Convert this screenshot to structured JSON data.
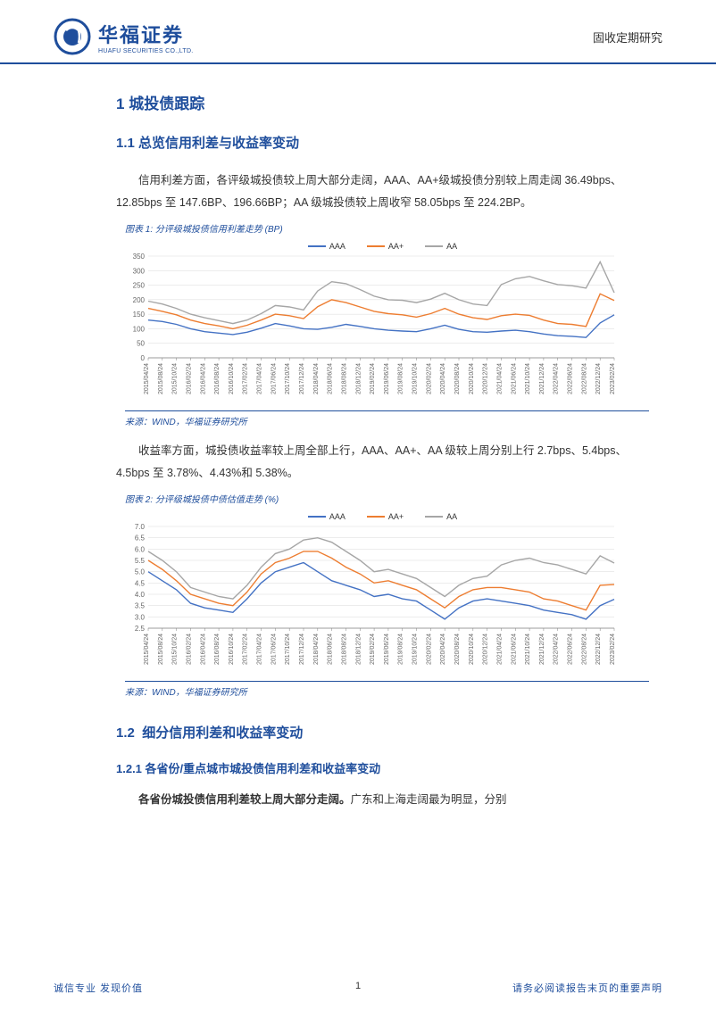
{
  "header": {
    "company_cn": "华福证券",
    "company_en": "HUAFU SECURITIES CO.,LTD.",
    "doc_type": "固收定期研究",
    "logo_color": "#1f4e9c"
  },
  "section1": {
    "num": "1",
    "title": "城投债跟踪"
  },
  "section1_1": {
    "num": "1.1",
    "title": "总览信用利差与收益率变动"
  },
  "para1": "信用利差方面，各评级城投债较上周大部分走阔，AAA、AA+级城投债分别较上周走阔 36.49bps、12.85bps 至 147.6BP、196.66BP；AA 级城投债较上周收窄 58.05bps 至 224.2BP。",
  "chart1": {
    "caption": "图表 1: 分评级城投债信用利差走势 (BP)",
    "source": "来源：WIND，华福证券研究所",
    "type": "line",
    "legend": [
      {
        "label": "AAA",
        "color": "#4472c4"
      },
      {
        "label": "AA+",
        "color": "#ed7d31"
      },
      {
        "label": "AA",
        "color": "#a6a6a6"
      }
    ],
    "ylim": [
      0,
      350
    ],
    "ytick_step": 50,
    "xlabels": [
      "2015/04/24",
      "2015/08/24",
      "2015/10/24",
      "2016/02/24",
      "2016/04/24",
      "2016/08/24",
      "2016/10/24",
      "2017/02/24",
      "2017/04/24",
      "2017/06/24",
      "2017/10/24",
      "2017/12/24",
      "2018/04/24",
      "2018/06/24",
      "2018/08/24",
      "2018/12/24",
      "2019/02/24",
      "2019/06/24",
      "2019/08/24",
      "2019/10/24",
      "2020/02/24",
      "2020/04/24",
      "2020/08/24",
      "2020/10/24",
      "2020/12/24",
      "2021/04/24",
      "2021/06/24",
      "2021/10/24",
      "2021/12/24",
      "2022/04/24",
      "2022/06/24",
      "2022/08/24",
      "2022/12/24",
      "2023/02/24"
    ],
    "series": {
      "AAA": [
        130,
        125,
        115,
        100,
        90,
        85,
        80,
        88,
        102,
        118,
        110,
        100,
        98,
        105,
        115,
        108,
        100,
        95,
        92,
        90,
        100,
        112,
        98,
        90,
        88,
        92,
        95,
        90,
        82,
        76,
        74,
        70,
        120,
        148
      ],
      "AAp": [
        170,
        160,
        148,
        130,
        118,
        110,
        100,
        112,
        130,
        150,
        145,
        135,
        176,
        200,
        190,
        175,
        160,
        152,
        148,
        140,
        152,
        170,
        150,
        138,
        132,
        145,
        150,
        146,
        130,
        118,
        115,
        108,
        220,
        197
      ],
      "AA": [
        195,
        185,
        170,
        150,
        138,
        128,
        118,
        130,
        152,
        180,
        175,
        165,
        230,
        262,
        255,
        235,
        212,
        200,
        198,
        190,
        202,
        222,
        200,
        185,
        180,
        252,
        272,
        280,
        265,
        252,
        248,
        240,
        330,
        224
      ]
    },
    "line_width": 1.4,
    "grid_color": "#d9d9d9",
    "axis_color": "#808080",
    "background": "#ffffff",
    "tick_fontsize": 8,
    "caption_fontsize": 10
  },
  "para2": "收益率方面，城投债收益率较上周全部上行，AAA、AA+、AA 级较上周分别上行 2.7bps、5.4bps、4.5bps 至 3.78%、4.43%和 5.38%。",
  "chart2": {
    "caption": "图表 2: 分评级城投债中债估值走势 (%)",
    "source": "来源：WIND，华福证券研究所",
    "type": "line",
    "legend": [
      {
        "label": "AAA",
        "color": "#4472c4"
      },
      {
        "label": "AA+",
        "color": "#ed7d31"
      },
      {
        "label": "AA",
        "color": "#a6a6a6"
      }
    ],
    "ylim": [
      2.5,
      7
    ],
    "ytick_step": 0.5,
    "xlabels": [
      "2015/04/24",
      "2015/08/24",
      "2015/10/24",
      "2016/02/24",
      "2016/04/24",
      "2016/08/24",
      "2016/10/24",
      "2017/02/24",
      "2017/04/24",
      "2017/06/24",
      "2017/10/24",
      "2017/12/24",
      "2018/04/24",
      "2018/06/24",
      "2018/08/24",
      "2018/12/24",
      "2019/02/24",
      "2019/06/24",
      "2019/08/24",
      "2019/10/24",
      "2020/02/24",
      "2020/04/24",
      "2020/08/24",
      "2020/10/24",
      "2020/12/24",
      "2021/04/24",
      "2021/06/24",
      "2021/10/24",
      "2021/12/24",
      "2022/04/24",
      "2022/06/24",
      "2022/08/24",
      "2022/12/24",
      "2023/02/24"
    ],
    "series": {
      "AAA": [
        5.0,
        4.6,
        4.2,
        3.6,
        3.4,
        3.3,
        3.2,
        3.8,
        4.5,
        5.0,
        5.2,
        5.4,
        5.0,
        4.6,
        4.4,
        4.2,
        3.9,
        4.0,
        3.8,
        3.7,
        3.3,
        2.9,
        3.4,
        3.7,
        3.8,
        3.7,
        3.6,
        3.5,
        3.3,
        3.2,
        3.1,
        2.9,
        3.5,
        3.78
      ],
      "AAp": [
        5.5,
        5.1,
        4.6,
        4.0,
        3.8,
        3.6,
        3.5,
        4.1,
        4.9,
        5.4,
        5.6,
        5.9,
        5.9,
        5.6,
        5.2,
        4.9,
        4.5,
        4.6,
        4.4,
        4.2,
        3.8,
        3.4,
        3.9,
        4.2,
        4.3,
        4.3,
        4.2,
        4.1,
        3.8,
        3.7,
        3.5,
        3.3,
        4.4,
        4.43
      ],
      "AA": [
        5.9,
        5.5,
        5.0,
        4.3,
        4.1,
        3.9,
        3.8,
        4.4,
        5.2,
        5.8,
        6.0,
        6.4,
        6.5,
        6.3,
        5.9,
        5.5,
        5.0,
        5.1,
        4.9,
        4.7,
        4.3,
        3.9,
        4.4,
        4.7,
        4.8,
        5.3,
        5.5,
        5.6,
        5.4,
        5.3,
        5.1,
        4.9,
        5.7,
        5.38
      ]
    },
    "line_width": 1.4,
    "grid_color": "#d9d9d9",
    "axis_color": "#808080",
    "background": "#ffffff",
    "tick_fontsize": 8,
    "caption_fontsize": 10
  },
  "section1_2": {
    "num": "1.2",
    "title": "细分信用利差和收益率变动"
  },
  "section1_2_1": {
    "num": "1.2.1",
    "title": "各省份/重点城市城投债信用利差和收益率变动"
  },
  "para3_bold": "各省份城投债信用利差较上周大部分走阔。",
  "para3_rest": "广东和上海走阔最为明显，分别",
  "footer": {
    "left": "诚信专业  发现价值",
    "page": "1",
    "right": "请务必阅读报告末页的重要声明"
  }
}
